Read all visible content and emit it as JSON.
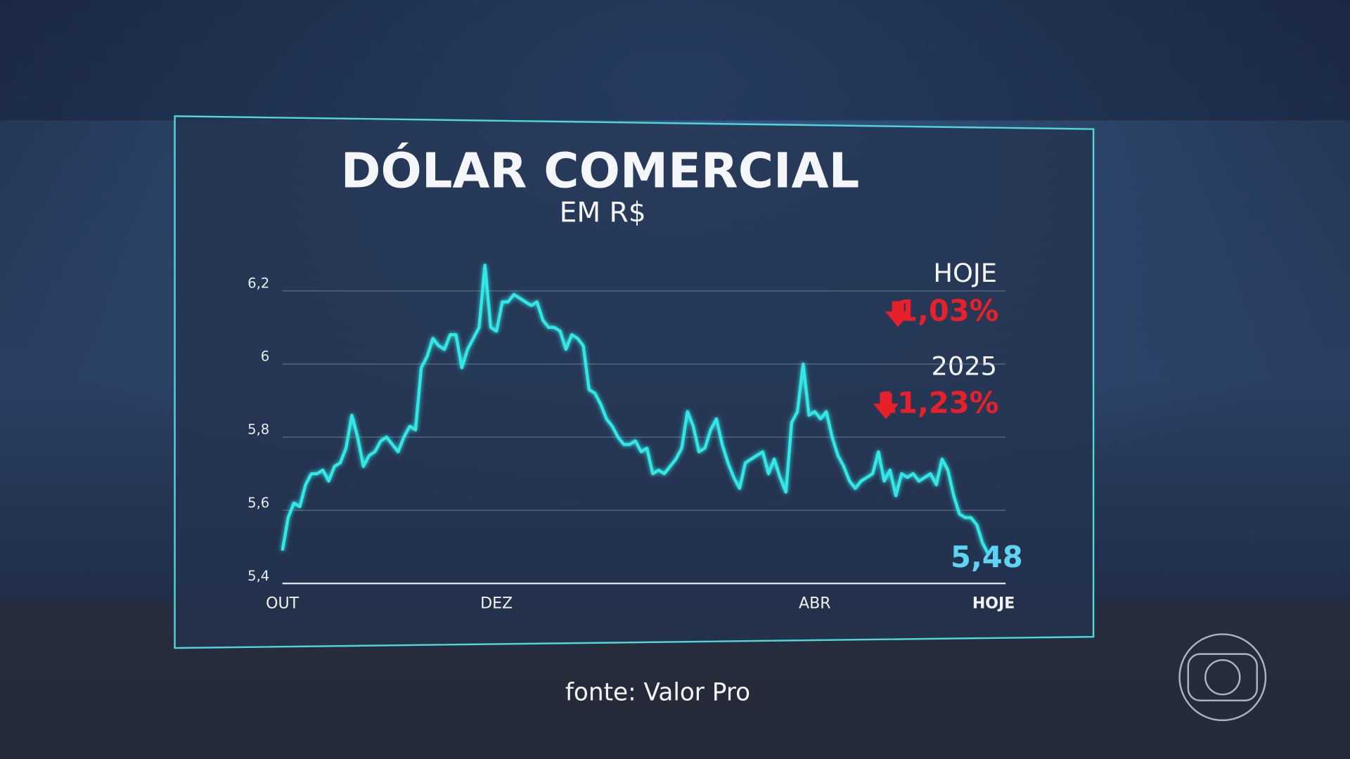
{
  "chart_data": {
    "type": "line",
    "title": "DÓLAR COMERCIAL",
    "subtitle": "EM R$",
    "categories": [
      "OUT",
      null,
      null,
      null,
      null,
      null,
      null,
      null,
      null,
      null,
      null,
      null,
      null,
      null,
      null,
      null,
      null,
      null,
      null,
      null,
      null,
      null,
      null,
      null,
      null,
      null,
      null,
      null,
      null,
      null,
      null,
      null,
      null,
      null,
      null,
      null,
      null,
      "DEZ",
      null,
      null,
      null,
      null,
      null,
      null,
      null,
      null,
      null,
      null,
      null,
      null,
      null,
      null,
      null,
      null,
      null,
      null,
      null,
      null,
      null,
      null,
      null,
      null,
      null,
      null,
      null,
      null,
      null,
      null,
      null,
      null,
      null,
      null,
      null,
      null,
      null,
      null,
      null,
      null,
      null,
      null,
      null,
      null,
      null,
      null,
      null,
      null,
      null,
      null,
      null,
      null,
      null,
      null,
      "ABR",
      null,
      null,
      null,
      null,
      null,
      null,
      null,
      null,
      null,
      null,
      null,
      null,
      null,
      null,
      null,
      null,
      null,
      null,
      null,
      null,
      null,
      null,
      null,
      null,
      null,
      null,
      null,
      null,
      null,
      "HOJE"
    ],
    "values": [
      5.49,
      5.58,
      5.62,
      5.61,
      5.67,
      5.7,
      5.7,
      5.71,
      5.68,
      5.72,
      5.73,
      5.77,
      5.86,
      5.8,
      5.72,
      5.75,
      5.76,
      5.79,
      5.8,
      5.78,
      5.76,
      5.8,
      5.83,
      5.82,
      5.99,
      6.02,
      6.07,
      6.05,
      6.04,
      6.08,
      6.08,
      5.99,
      6.04,
      6.07,
      6.1,
      6.27,
      6.1,
      6.09,
      6.17,
      6.17,
      6.19,
      6.18,
      6.17,
      6.16,
      6.17,
      6.12,
      6.1,
      6.1,
      6.09,
      6.04,
      6.08,
      6.07,
      6.05,
      5.93,
      5.92,
      5.89,
      5.85,
      5.83,
      5.8,
      5.78,
      5.78,
      5.79,
      5.76,
      5.77,
      5.7,
      5.71,
      5.7,
      5.72,
      5.74,
      5.77,
      5.87,
      5.83,
      5.76,
      5.77,
      5.82,
      5.85,
      5.78,
      5.73,
      5.69,
      5.66,
      5.73,
      5.74,
      5.75,
      5.76,
      5.7,
      5.74,
      5.69,
      5.65,
      5.84,
      5.87,
      6.0,
      5.86,
      5.87,
      5.85,
      5.87,
      5.8,
      5.75,
      5.72,
      5.68,
      5.66,
      5.68,
      5.69,
      5.7,
      5.76,
      5.68,
      5.71,
      5.64,
      5.7,
      5.69,
      5.7,
      5.68,
      5.69,
      5.7,
      5.67,
      5.74,
      5.71,
      5.64,
      5.59,
      5.58,
      5.58,
      5.56,
      5.51,
      5.48
    ],
    "value_labels": [
      null,
      null,
      null,
      null,
      null,
      null,
      null,
      null,
      null,
      null,
      null,
      null,
      null,
      null,
      null,
      null,
      null,
      null,
      null,
      null,
      null,
      null,
      null,
      null,
      null,
      null,
      null,
      null,
      null,
      null,
      null,
      null,
      null,
      null,
      null,
      null,
      null,
      null,
      null,
      null,
      null,
      null,
      null,
      null,
      null,
      null,
      null,
      null,
      null,
      null,
      null,
      null,
      null,
      null,
      null,
      null,
      null,
      null,
      null,
      null,
      null,
      null,
      null,
      null,
      null,
      null,
      null,
      null,
      null,
      null,
      null,
      null,
      null,
      null,
      null,
      null,
      null,
      null,
      null,
      null,
      null,
      null,
      null,
      null,
      null,
      null,
      null,
      null,
      null,
      null,
      null,
      null,
      null,
      null,
      null,
      null,
      null,
      null,
      null,
      null,
      null,
      null,
      null,
      null,
      null,
      null,
      null,
      null,
      null,
      null,
      null,
      null,
      null,
      null,
      null,
      null,
      null,
      null,
      null,
      null,
      null,
      null,
      "5,48"
    ],
    "color": "#33e8e6",
    "ylim": [
      5.4,
      6.2
    ],
    "yticks": [
      {
        "value": 5.4,
        "label": "5,4"
      },
      {
        "value": 5.6,
        "label": "5,6"
      },
      {
        "value": 5.8,
        "label": "5,8"
      },
      6,
      {
        "value": 6.2,
        "label": "6,2"
      }
    ],
    "grid": true,
    "annotations": [
      "HOJE",
      "1,03%",
      "2025",
      "11,23%"
    ],
    "source": "fonte: Valor Pro"
  }
}
